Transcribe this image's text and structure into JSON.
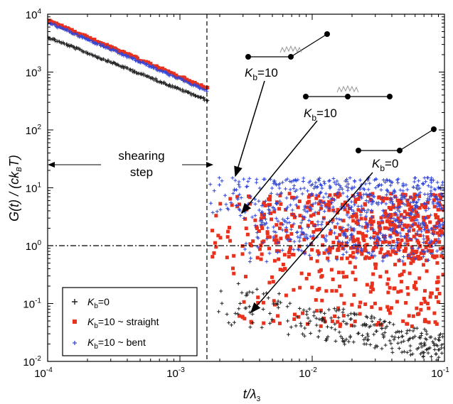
{
  "chart_data": {
    "type": "scatter",
    "xlabel": "t/λ3",
    "ylabel": "G(t) / (ckBT)",
    "x_scale": "log",
    "y_scale": "log",
    "xlim": [
      0.0001,
      0.1
    ],
    "ylim": [
      0.01,
      10000
    ],
    "x_ticks": [
      {
        "value": 0.0001,
        "base": "10",
        "exp": "-4"
      },
      {
        "value": 0.001,
        "base": "10",
        "exp": "-3"
      },
      {
        "value": 0.01,
        "base": "10",
        "exp": "-2"
      },
      {
        "value": 0.1,
        "base": "10",
        "exp": "-1"
      }
    ],
    "y_ticks": [
      {
        "value": 0.01,
        "base": "10",
        "exp": "-2"
      },
      {
        "value": 0.1,
        "base": "10",
        "exp": "-1"
      },
      {
        "value": 1,
        "base": "10",
        "exp": "0"
      },
      {
        "value": 10,
        "base": "10",
        "exp": "1"
      },
      {
        "value": 100,
        "base": "10",
        "exp": "2"
      },
      {
        "value": 1000,
        "base": "10",
        "exp": "3"
      },
      {
        "value": 10000,
        "base": "10",
        "exp": "4"
      }
    ],
    "shearing_step_end": 0.0016,
    "reference_level": 1,
    "series": [
      {
        "name": "Kb=0",
        "label_main": "K",
        "label_sub": "b",
        "label_rest": "=0",
        "color": "#222222",
        "marker": "plus",
        "shear_decay": {
          "x": [
            0.0001,
            0.0016
          ],
          "y": [
            4000,
            330
          ]
        },
        "scatter_range": {
          "x": [
            0.0016,
            0.1
          ],
          "y_start": [
            0.05,
            0.3
          ],
          "y_end": [
            0.01,
            0.03
          ]
        }
      },
      {
        "name": "Kb=10 ~ straight",
        "label_main": "K",
        "label_sub": "b",
        "label_rest": "=10 ~ straight",
        "color": "#e8321e",
        "marker": "square",
        "shear_decay": {
          "x": [
            0.0001,
            0.0016
          ],
          "y": [
            7800,
            520
          ]
        },
        "scatter_range": {
          "x": [
            0.0016,
            0.1
          ],
          "y": [
            0.04,
            8
          ]
        }
      },
      {
        "name": "Kb=10 ~ bent",
        "label_main": "K",
        "label_sub": "b",
        "label_rest": "=10 ~ bent",
        "color": "#3347d6",
        "marker": "plus",
        "shear_decay": {
          "x": [
            0.0001,
            0.0016
          ],
          "y": [
            7200,
            480
          ]
        },
        "scatter_range": {
          "x": [
            0.0016,
            0.1
          ],
          "y": [
            0.5,
            15
          ]
        }
      }
    ],
    "annotations": {
      "shearing_step": [
        "shearing",
        "step"
      ],
      "kb_labels": [
        {
          "main": "K",
          "sub": "b",
          "rest": "=10"
        },
        {
          "main": "K",
          "sub": "b",
          "rest": "=10"
        },
        {
          "main": "K",
          "sub": "b",
          "rest": "=0"
        }
      ]
    },
    "legend_placement": "bottom-left",
    "grid": false
  }
}
